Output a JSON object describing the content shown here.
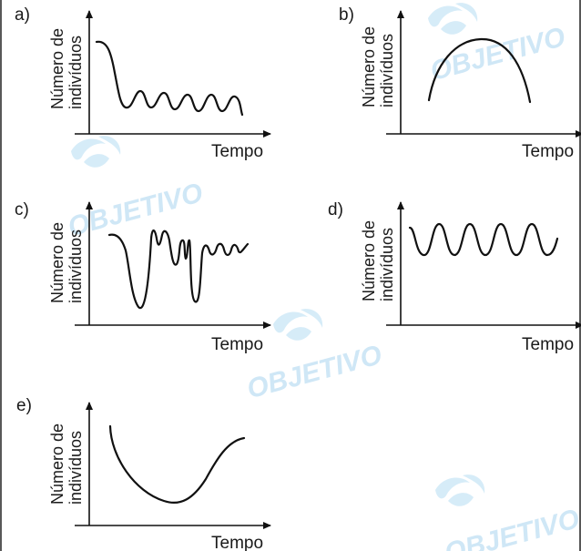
{
  "watermark": {
    "text": "OBJETIVO",
    "color": "#cfe7f6",
    "icon": "objetivo-logo-icon"
  },
  "axis": {
    "y_label_line1": "Número de",
    "y_label_line2": "indivíduos",
    "x_label": "Tempo"
  },
  "panels": [
    {
      "letter": "a)"
    },
    {
      "letter": "b)"
    },
    {
      "letter": "c)"
    },
    {
      "letter": "d)"
    },
    {
      "letter": "e)"
    }
  ]
}
